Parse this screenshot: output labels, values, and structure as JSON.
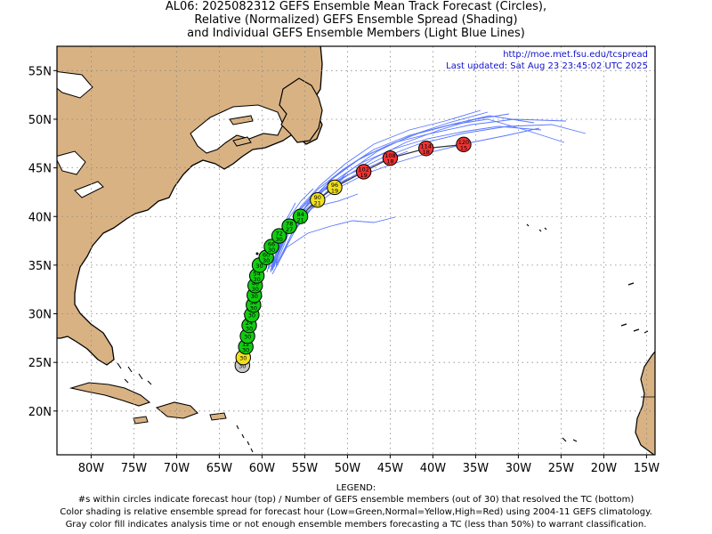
{
  "title_lines": [
    "AL06: 2025082312 GEFS Ensemble Mean Track Forecast (Circles),",
    "Relative (Normalized) GEFS Ensemble Spread (Shading)",
    "and Individual GEFS Ensemble Members (Light Blue Lines)"
  ],
  "credit": {
    "url": "http://moe.met.fsu.edu/tcspread",
    "updated": "Last updated: Sat Aug 23 23:45:02 UTC 2025"
  },
  "axes": {
    "lon_labels": [
      "80W",
      "75W",
      "70W",
      "65W",
      "60W",
      "55W",
      "50W",
      "45W",
      "40W",
      "35W",
      "30W",
      "25W",
      "20W",
      "15W"
    ],
    "lat_labels": [
      "55N",
      "50N",
      "45N",
      "40N",
      "35N",
      "30N",
      "25N",
      "20N"
    ],
    "lon_range": [
      -84,
      -14
    ],
    "lat_range": [
      15.5,
      57.5
    ]
  },
  "colors": {
    "land": "#d9b283",
    "ocean": "#ffffff",
    "member_track": "#5a78ff",
    "low_spread": "#11cc11",
    "normal_spread": "#f0e020",
    "high_spread": "#ee3333",
    "analysis": "#c8c8c8"
  },
  "mean_track": [
    {
      "lat": 24.7,
      "lon": -62.3,
      "hour": "",
      "members": "30",
      "spread": "analysis"
    },
    {
      "lat": 25.5,
      "lon": -62.2,
      "hour": "",
      "members": "30",
      "spread": "normal"
    },
    {
      "lat": 26.6,
      "lon": -61.9,
      "hour": "12",
      "members": "30",
      "spread": "low"
    },
    {
      "lat": 27.7,
      "lon": -61.7,
      "hour": "",
      "members": "30",
      "spread": "low"
    },
    {
      "lat": 28.8,
      "lon": -61.5,
      "hour": "24",
      "members": "30",
      "spread": "low"
    },
    {
      "lat": 29.9,
      "lon": -61.2,
      "hour": "",
      "members": "30",
      "spread": "low"
    },
    {
      "lat": 30.9,
      "lon": -61.0,
      "hour": "36",
      "members": "30",
      "spread": "low"
    },
    {
      "lat": 31.9,
      "lon": -60.9,
      "hour": "",
      "members": "30",
      "spread": "low"
    },
    {
      "lat": 32.9,
      "lon": -60.8,
      "hour": "48",
      "members": "30",
      "spread": "low"
    },
    {
      "lat": 33.9,
      "lon": -60.6,
      "hour": "54",
      "members": "30",
      "spread": "low"
    },
    {
      "lat": 35.0,
      "lon": -60.3,
      "hour": "",
      "members": "30",
      "spread": "low"
    },
    {
      "lat": 35.8,
      "lon": -59.5,
      "hour": "60",
      "members": "30",
      "spread": "low"
    },
    {
      "lat": 36.9,
      "lon": -58.9,
      "hour": "66",
      "members": "30",
      "spread": "low"
    },
    {
      "lat": 38.0,
      "lon": -58.0,
      "hour": "72",
      "members": "30",
      "spread": "low"
    },
    {
      "lat": 39.0,
      "lon": -56.8,
      "hour": "78",
      "members": "27",
      "spread": "low"
    },
    {
      "lat": 40.0,
      "lon": -55.5,
      "hour": "84",
      "members": "21",
      "spread": "low"
    },
    {
      "lat": 41.7,
      "lon": -53.5,
      "hour": "90",
      "members": "21",
      "spread": "normal"
    },
    {
      "lat": 43.0,
      "lon": -51.5,
      "hour": "96",
      "members": "19",
      "spread": "normal"
    },
    {
      "lat": 44.6,
      "lon": -48.1,
      "hour": "102",
      "members": "19",
      "spread": "high"
    },
    {
      "lat": 46.0,
      "lon": -45.0,
      "hour": "108",
      "members": "18",
      "spread": "high"
    },
    {
      "lat": 47.0,
      "lon": -40.8,
      "hour": "114",
      "members": "18",
      "spread": "high"
    },
    {
      "lat": 47.4,
      "lon": -36.4,
      "hour": "120",
      "members": "15",
      "spread": "high"
    }
  ],
  "legend": {
    "heading": "LEGEND:",
    "lines": [
      "#s within circles indicate forecast hour (top) / Number of GEFS ensemble members (out of 30) that resolved the TC (bottom)",
      "Color shading is relative ensemble spread for forecast hour (Low=Green,Normal=Yellow,High=Red) using 2004-11 GEFS climatology.",
      "Gray color fill indicates analysis time or not enough ensemble members forecasting a TC (less than 50%) to warrant classification."
    ]
  }
}
